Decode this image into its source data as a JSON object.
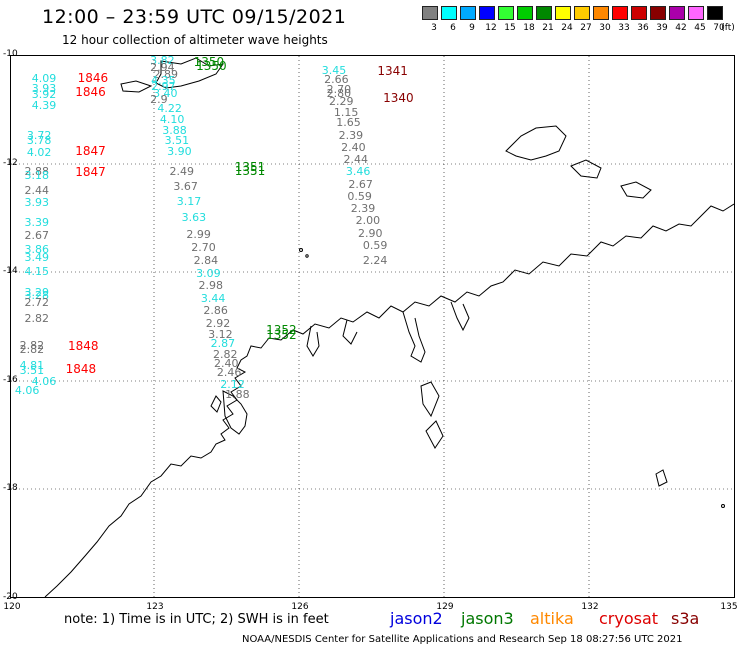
{
  "header": {
    "title": "12:00 – 23:59 UTC 09/15/2021",
    "subtitle": "12 hour collection of altimeter wave heights"
  },
  "legend": {
    "unit": "(ft)",
    "bins": [
      {
        "label": "3",
        "color": "#808080"
      },
      {
        "label": "6",
        "color": "#00ffff"
      },
      {
        "label": "9",
        "color": "#00aaff"
      },
      {
        "label": "12",
        "color": "#0000ff"
      },
      {
        "label": "15",
        "color": "#33ff33"
      },
      {
        "label": "18",
        "color": "#00cc00"
      },
      {
        "label": "21",
        "color": "#008800"
      },
      {
        "label": "24",
        "color": "#ffff00"
      },
      {
        "label": "27",
        "color": "#ffcc00"
      },
      {
        "label": "30",
        "color": "#ff8800"
      },
      {
        "label": "33",
        "color": "#ff0000"
      },
      {
        "label": "36",
        "color": "#cc0000"
      },
      {
        "label": "39",
        "color": "#880000"
      },
      {
        "label": "42",
        "color": "#aa00aa"
      },
      {
        "label": "45",
        "color": "#ff66ff"
      },
      {
        "label": "70",
        "color": "#000000"
      }
    ]
  },
  "axes": {
    "lat_labels": [
      "-10",
      "-12",
      "-14",
      "-16",
      "-18",
      "-20"
    ],
    "lon_labels": [
      "120",
      "123",
      "126",
      "129",
      "132",
      "135"
    ]
  },
  "colors": {
    "gray": "#707070",
    "cyan": "#22dddd",
    "green": "#008800",
    "red": "#ff0000",
    "darkred": "#880000"
  },
  "map_data": {
    "observations": [
      {
        "v": "3.82",
        "c": "cyan",
        "lon": 122.9,
        "lat": -10.0
      },
      {
        "v": "2.94",
        "c": "gray",
        "lon": 122.9,
        "lat": -10.12
      },
      {
        "v": "2.89",
        "c": "gray",
        "lon": 122.97,
        "lat": -10.25
      },
      {
        "v": "4.35",
        "c": "cyan",
        "lon": 122.92,
        "lat": -10.37
      },
      {
        "v": "2.97",
        "c": "cyan",
        "lon": 122.92,
        "lat": -10.48
      },
      {
        "v": "3.40",
        "c": "cyan",
        "lon": 122.96,
        "lat": -10.6
      },
      {
        "v": "2.9",
        "c": "gray",
        "lon": 122.9,
        "lat": -10.72
      },
      {
        "v": "4.22",
        "c": "cyan",
        "lon": 123.05,
        "lat": -10.88
      },
      {
        "v": "4.10",
        "c": "cyan",
        "lon": 123.1,
        "lat": -11.08
      },
      {
        "v": "3.88",
        "c": "cyan",
        "lon": 123.15,
        "lat": -11.28
      },
      {
        "v": "3.51",
        "c": "cyan",
        "lon": 123.2,
        "lat": -11.48
      },
      {
        "v": "3.90",
        "c": "cyan",
        "lon": 123.25,
        "lat": -11.68
      },
      {
        "v": "2.49",
        "c": "gray",
        "lon": 123.3,
        "lat": -12.05
      },
      {
        "v": "3.67",
        "c": "gray",
        "lon": 123.38,
        "lat": -12.32
      },
      {
        "v": "3.17",
        "c": "cyan",
        "lon": 123.45,
        "lat": -12.6
      },
      {
        "v": "3.63",
        "c": "cyan",
        "lon": 123.55,
        "lat": -12.9
      },
      {
        "v": "2.99",
        "c": "gray",
        "lon": 123.65,
        "lat": -13.2
      },
      {
        "v": "2.70",
        "c": "gray",
        "lon": 123.75,
        "lat": -13.45
      },
      {
        "v": "2.84",
        "c": "gray",
        "lon": 123.8,
        "lat": -13.68
      },
      {
        "v": "3.09",
        "c": "cyan",
        "lon": 123.85,
        "lat": -13.92
      },
      {
        "v": "2.98",
        "c": "gray",
        "lon": 123.9,
        "lat": -14.15
      },
      {
        "v": "3.44",
        "c": "cyan",
        "lon": 123.95,
        "lat": -14.38
      },
      {
        "v": "2.86",
        "c": "gray",
        "lon": 124.0,
        "lat": -14.6
      },
      {
        "v": "2.92",
        "c": "gray",
        "lon": 124.05,
        "lat": -14.85
      },
      {
        "v": "3.12",
        "c": "gray",
        "lon": 124.1,
        "lat": -15.05
      },
      {
        "v": "2.87",
        "c": "cyan",
        "lon": 124.15,
        "lat": -15.22
      },
      {
        "v": "2.82",
        "c": "gray",
        "lon": 124.2,
        "lat": -15.42
      },
      {
        "v": "2.40",
        "c": "gray",
        "lon": 124.22,
        "lat": -15.58
      },
      {
        "v": "2.46",
        "c": "gray",
        "lon": 124.28,
        "lat": -15.75
      },
      {
        "v": "2.12",
        "c": "cyan",
        "lon": 124.35,
        "lat": -15.97
      },
      {
        "v": "1.88",
        "c": "gray",
        "lon": 124.45,
        "lat": -16.15
      },
      {
        "v": "4.09",
        "c": "cyan",
        "lon": 120.45,
        "lat": -10.33
      },
      {
        "v": "3.93",
        "c": "cyan",
        "lon": 120.45,
        "lat": -10.52
      },
      {
        "v": "3.92",
        "c": "cyan",
        "lon": 120.45,
        "lat": -10.63
      },
      {
        "v": "4.39",
        "c": "cyan",
        "lon": 120.45,
        "lat": -10.82
      },
      {
        "v": "3.72",
        "c": "cyan",
        "lon": 120.35,
        "lat": -11.38
      },
      {
        "v": "3.78",
        "c": "cyan",
        "lon": 120.35,
        "lat": -11.47
      },
      {
        "v": "4.02",
        "c": "cyan",
        "lon": 120.35,
        "lat": -11.7
      },
      {
        "v": "2.88",
        "c": "gray",
        "lon": 120.3,
        "lat": -12.05
      },
      {
        "v": "3.18",
        "c": "cyan",
        "lon": 120.3,
        "lat": -12.12
      },
      {
        "v": "2.44",
        "c": "gray",
        "lon": 120.3,
        "lat": -12.4
      },
      {
        "v": "3.93",
        "c": "cyan",
        "lon": 120.3,
        "lat": -12.62
      },
      {
        "v": "3.39",
        "c": "cyan",
        "lon": 120.3,
        "lat": -12.98
      },
      {
        "v": "2.67",
        "c": "gray",
        "lon": 120.3,
        "lat": -13.22
      },
      {
        "v": "3.86",
        "c": "cyan",
        "lon": 120.3,
        "lat": -13.48
      },
      {
        "v": "3.49",
        "c": "cyan",
        "lon": 120.3,
        "lat": -13.62
      },
      {
        "v": "4.15",
        "c": "cyan",
        "lon": 120.3,
        "lat": -13.88
      },
      {
        "v": "3.29",
        "c": "cyan",
        "lon": 120.3,
        "lat": -14.28
      },
      {
        "v": "3.28",
        "c": "cyan",
        "lon": 120.3,
        "lat": -14.33
      },
      {
        "v": "2.72",
        "c": "gray",
        "lon": 120.3,
        "lat": -14.45
      },
      {
        "v": "2.82",
        "c": "gray",
        "lon": 120.3,
        "lat": -14.75
      },
      {
        "v": "2.82",
        "c": "gray",
        "lon": 120.2,
        "lat": -15.25
      },
      {
        "v": "2.82",
        "c": "gray",
        "lon": 120.2,
        "lat": -15.32
      },
      {
        "v": "4.81",
        "c": "cyan",
        "lon": 120.2,
        "lat": -15.62
      },
      {
        "v": "3.51",
        "c": "cyan",
        "lon": 120.2,
        "lat": -15.7
      },
      {
        "v": "4.06",
        "c": "cyan",
        "lon": 120.45,
        "lat": -15.92
      },
      {
        "v": "4.06",
        "c": "cyan",
        "lon": 120.1,
        "lat": -16.07
      },
      {
        "v": "3.45",
        "c": "cyan",
        "lon": 126.45,
        "lat": -10.18
      },
      {
        "v": "2.66",
        "c": "gray",
        "lon": 126.5,
        "lat": -10.35
      },
      {
        "v": "2.70",
        "c": "gray",
        "lon": 126.55,
        "lat": -10.53
      },
      {
        "v": "2.80",
        "c": "gray",
        "lon": 126.55,
        "lat": -10.6
      },
      {
        "v": "2.29",
        "c": "gray",
        "lon": 126.6,
        "lat": -10.75
      },
      {
        "v": "1.15",
        "c": "gray",
        "lon": 126.7,
        "lat": -10.95
      },
      {
        "v": "1.65",
        "c": "gray",
        "lon": 126.75,
        "lat": -11.15
      },
      {
        "v": "2.39",
        "c": "gray",
        "lon": 126.8,
        "lat": -11.38
      },
      {
        "v": "2.40",
        "c": "gray",
        "lon": 126.85,
        "lat": -11.6
      },
      {
        "v": "2.44",
        "c": "gray",
        "lon": 126.9,
        "lat": -11.82
      },
      {
        "v": "3.46",
        "c": "cyan",
        "lon": 126.95,
        "lat": -12.05
      },
      {
        "v": "2.67",
        "c": "gray",
        "lon": 127.0,
        "lat": -12.28
      },
      {
        "v": "0.59",
        "c": "gray",
        "lon": 126.98,
        "lat": -12.5
      },
      {
        "v": "2.39",
        "c": "gray",
        "lon": 127.05,
        "lat": -12.72
      },
      {
        "v": "2.00",
        "c": "gray",
        "lon": 127.15,
        "lat": -12.95
      },
      {
        "v": "2.90",
        "c": "gray",
        "lon": 127.2,
        "lat": -13.18
      },
      {
        "v": "0.59",
        "c": "gray",
        "lon": 127.3,
        "lat": -13.4
      },
      {
        "v": "2.24",
        "c": "gray",
        "lon": 127.3,
        "lat": -13.68
      }
    ],
    "time_labels": [
      {
        "v": "1350",
        "c": "green",
        "lon": 123.8,
        "lat": -10.02
      },
      {
        "v": "1350",
        "c": "green",
        "lon": 123.85,
        "lat": -10.1
      },
      {
        "v": "1846",
        "c": "red",
        "lon": 121.4,
        "lat": -10.32
      },
      {
        "v": "1846",
        "c": "red",
        "lon": 121.35,
        "lat": -10.58
      },
      {
        "v": "1847",
        "c": "red",
        "lon": 121.35,
        "lat": -11.65
      },
      {
        "v": "1847",
        "c": "red",
        "lon": 121.35,
        "lat": -12.05
      },
      {
        "v": "1351",
        "c": "green",
        "lon": 124.65,
        "lat": -11.95
      },
      {
        "v": "1351",
        "c": "green",
        "lon": 124.65,
        "lat": -12.02
      },
      {
        "v": "1341",
        "c": "darkred",
        "lon": 127.6,
        "lat": -10.18
      },
      {
        "v": "1340",
        "c": "darkred",
        "lon": 127.72,
        "lat": -10.68
      },
      {
        "v": "1352",
        "c": "green",
        "lon": 125.3,
        "lat": -14.95
      },
      {
        "v": "1352",
        "c": "green",
        "lon": 125.3,
        "lat": -15.05
      },
      {
        "v": "1848",
        "c": "red",
        "lon": 121.2,
        "lat": -15.25
      },
      {
        "v": "1848",
        "c": "red",
        "lon": 121.15,
        "lat": -15.68
      }
    ]
  },
  "footer": {
    "note": "note:  1) Time is in UTC;  2) SWH is in feet",
    "satellites": [
      {
        "name": "jason2",
        "color": "#0000dd"
      },
      {
        "name": "jason3",
        "color": "#007700"
      },
      {
        "name": "altika",
        "color": "#ff8800"
      },
      {
        "name": "cryosat",
        "color": "#dd0000"
      },
      {
        "name": "s3a",
        "color": "#880000"
      }
    ],
    "credit": "NOAA/NESDIS Center for Satellite Applications and Research     Sep 18 08:27:56 UTC 2021"
  }
}
